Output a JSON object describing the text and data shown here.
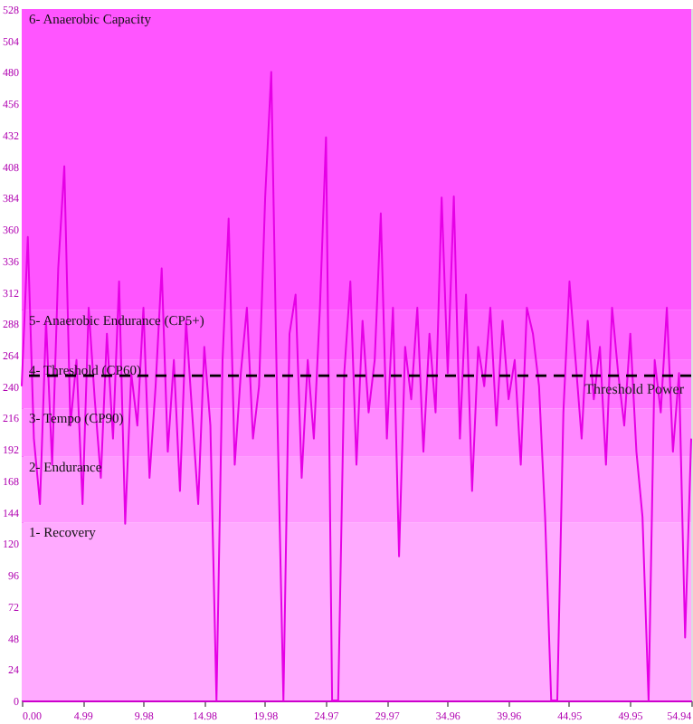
{
  "chart_data": {
    "type": "line",
    "xlim": [
      0,
      55
    ],
    "ylim": [
      0,
      528
    ],
    "xticks": [
      {
        "value": 0,
        "label": "0.00"
      },
      4.99,
      9.98,
      14.98,
      19.98,
      24.97,
      29.97,
      34.96,
      39.96,
      44.95,
      {
        "value": 49.95,
        "label": "49.95"
      },
      54.94
    ],
    "yticks": [
      0,
      24,
      48,
      72,
      96,
      120,
      144,
      168,
      192,
      216,
      240,
      264,
      288,
      312,
      336,
      360,
      384,
      408,
      432,
      456,
      480,
      504,
      528
    ],
    "grid": false,
    "bands": [
      {
        "axis": "y",
        "from": 0,
        "to": 136,
        "label": "1- Recovery",
        "color": "#ffaaff"
      },
      {
        "axis": "y",
        "from": 136,
        "to": 186,
        "label": "2- Endurance",
        "color": "#ff99ff"
      },
      {
        "axis": "y",
        "from": 186,
        "to": 223,
        "label": "3- Tempo (CP90)",
        "color": "#ff88ff"
      },
      {
        "axis": "y",
        "from": 223,
        "to": 260,
        "label": "4- Threshold (CP60)",
        "color": "#ff77ff"
      },
      {
        "axis": "y",
        "from": 260,
        "to": 298,
        "label": "5- Anaerobic Endurance (CP5+)",
        "color": "#ff66ff"
      },
      {
        "axis": "y",
        "from": 298,
        "to": 528,
        "label": "6- Anaerobic Capacity",
        "color": "#ff55ff"
      }
    ],
    "ref_lines": [
      {
        "axis": "y",
        "value": 248,
        "label": "Threshold Power",
        "color": "#000000",
        "line_style": "dashed"
      }
    ],
    "series": [
      {
        "color": "#e600e6",
        "line_style": "solid",
        "x": [
          0,
          0.5,
          1,
          1.5,
          2,
          2.5,
          3,
          3.5,
          4,
          4.5,
          5,
          5.5,
          6,
          6.5,
          7,
          7.5,
          8,
          8.5,
          9,
          9.5,
          10,
          10.5,
          11,
          11.5,
          12,
          12.5,
          13,
          13.5,
          14,
          14.5,
          15,
          15.5,
          16,
          16.5,
          17,
          17.5,
          18,
          18.5,
          19,
          19.5,
          20,
          20.5,
          21,
          21.5,
          22,
          22.5,
          23,
          23.5,
          24,
          24.5,
          25,
          25.5,
          26,
          26.5,
          27,
          27.5,
          28,
          28.5,
          29,
          29.5,
          30,
          30.5,
          31,
          31.5,
          32,
          32.5,
          33,
          33.5,
          34,
          34.5,
          35,
          35.5,
          36,
          36.5,
          37,
          37.5,
          38,
          38.5,
          39,
          39.5,
          40,
          40.5,
          41,
          41.5,
          42,
          42.5,
          43,
          43.5,
          44,
          44.5,
          45,
          45.5,
          46,
          46.5,
          47,
          47.5,
          48,
          48.5,
          49,
          49.5,
          50,
          50.5,
          51,
          51.5,
          52,
          52.5,
          53,
          53.5,
          54,
          54.5,
          55
        ],
        "values": [
          240,
          354,
          200,
          150,
          290,
          180,
          330,
          408,
          210,
          260,
          150,
          300,
          230,
          170,
          280,
          200,
          320,
          135,
          250,
          210,
          300,
          170,
          240,
          330,
          190,
          260,
          160,
          290,
          220,
          150,
          270,
          210,
          0,
          260,
          368,
          180,
          250,
          300,
          200,
          240,
          384,
          480,
          220,
          0,
          280,
          310,
          170,
          260,
          200,
          300,
          430,
          0,
          0,
          250,
          320,
          180,
          290,
          220,
          260,
          372,
          200,
          300,
          110,
          270,
          230,
          300,
          190,
          280,
          220,
          384,
          250,
          385,
          200,
          310,
          160,
          270,
          240,
          300,
          210,
          290,
          230,
          260,
          180,
          300,
          280,
          240,
          140,
          0,
          0,
          220,
          320,
          260,
          200,
          290,
          230,
          270,
          180,
          300,
          250,
          210,
          280,
          190,
          140,
          0,
          260,
          220,
          300,
          190,
          250,
          48,
          200
        ]
      }
    ]
  }
}
